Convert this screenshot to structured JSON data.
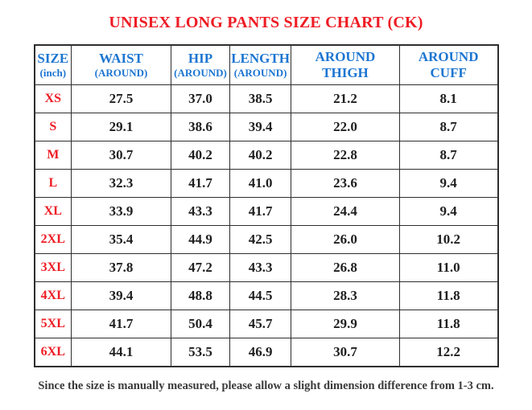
{
  "title": "UNISEX LONG PANTS SIZE CHART (CK)",
  "note": "Since the size is manually measured, please allow a slight dimension difference from 1-3 cm.",
  "colors": {
    "title_red": "#ee1c25",
    "label_red": "#ee1c25",
    "header_blue": "#1c75d1",
    "border": "#2e2e2e",
    "text": "#1f1f1f",
    "note": "#3a3a3a"
  },
  "table": {
    "headers": [
      {
        "line1": "SIZE",
        "line2": "(inch)"
      },
      {
        "line1": "WAIST",
        "line2": "(AROUND)"
      },
      {
        "line1": "HIP",
        "line2": "(AROUND)"
      },
      {
        "line1": "LENGTH",
        "line2": "(AROUND)"
      },
      {
        "line1": "AROUND",
        "line2": "THIGH"
      },
      {
        "line1": "AROUND",
        "line2": "CUFF"
      }
    ],
    "rows": [
      {
        "size": "XS",
        "values": [
          "27.5",
          "37.0",
          "38.5",
          "21.2",
          "8.1"
        ]
      },
      {
        "size": "S",
        "values": [
          "29.1",
          "38.6",
          "39.4",
          "22.0",
          "8.7"
        ]
      },
      {
        "size": "M",
        "values": [
          "30.7",
          "40.2",
          "40.2",
          "22.8",
          "8.7"
        ]
      },
      {
        "size": "L",
        "values": [
          "32.3",
          "41.7",
          "41.0",
          "23.6",
          "9.4"
        ]
      },
      {
        "size": "XL",
        "values": [
          "33.9",
          "43.3",
          "41.7",
          "24.4",
          "9.4"
        ]
      },
      {
        "size": "2XL",
        "values": [
          "35.4",
          "44.9",
          "42.5",
          "26.0",
          "10.2"
        ]
      },
      {
        "size": "3XL",
        "values": [
          "37.8",
          "47.2",
          "43.3",
          "26.8",
          "11.0"
        ]
      },
      {
        "size": "4XL",
        "values": [
          "39.4",
          "48.8",
          "44.5",
          "28.3",
          "11.8"
        ]
      },
      {
        "size": "5XL",
        "values": [
          "41.7",
          "50.4",
          "45.7",
          "29.9",
          "11.8"
        ]
      },
      {
        "size": "6XL",
        "values": [
          "44.1",
          "53.5",
          "46.9",
          "30.7",
          "12.2"
        ]
      }
    ]
  },
  "chart_data": {
    "type": "table",
    "title": "UNISEX LONG PANTS SIZE CHART (CK)",
    "columns": [
      "SIZE (inch)",
      "WAIST (AROUND)",
      "HIP (AROUND)",
      "LENGTH (AROUND)",
      "AROUND THIGH",
      "AROUND CUFF"
    ],
    "rows": [
      [
        "XS",
        27.5,
        37.0,
        38.5,
        21.2,
        8.1
      ],
      [
        "S",
        29.1,
        38.6,
        39.4,
        22.0,
        8.7
      ],
      [
        "M",
        30.7,
        40.2,
        40.2,
        22.8,
        8.7
      ],
      [
        "L",
        32.3,
        41.7,
        41.0,
        23.6,
        9.4
      ],
      [
        "XL",
        33.9,
        43.3,
        41.7,
        24.4,
        9.4
      ],
      [
        "2XL",
        35.4,
        44.9,
        42.5,
        26.0,
        10.2
      ],
      [
        "3XL",
        37.8,
        47.2,
        43.3,
        26.8,
        11.0
      ],
      [
        "4XL",
        39.4,
        48.8,
        44.5,
        28.3,
        11.8
      ],
      [
        "5XL",
        41.7,
        50.4,
        45.7,
        29.9,
        11.8
      ],
      [
        "6XL",
        44.1,
        53.5,
        46.9,
        30.7,
        12.2
      ]
    ]
  }
}
